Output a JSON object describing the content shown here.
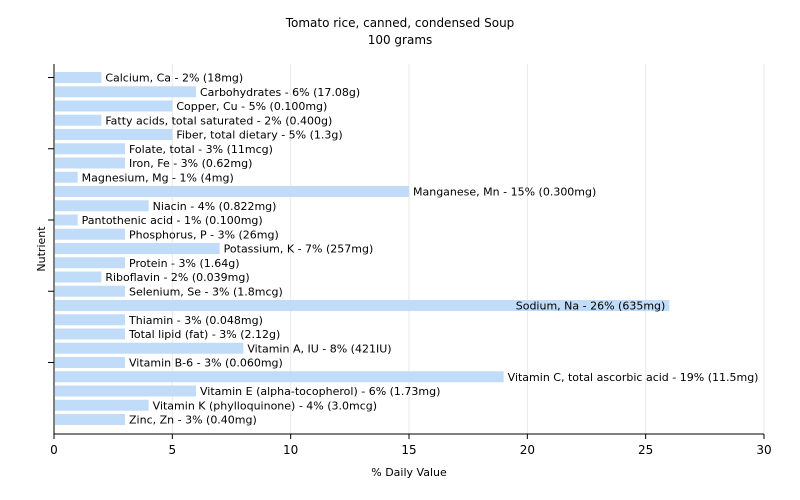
{
  "chart_data": {
    "type": "bar",
    "orientation": "horizontal",
    "title": "Tomato rice, canned, condensed Soup",
    "subtitle": "100 grams",
    "xlabel": "% Daily Value",
    "ylabel": "Nutrient",
    "xlim": [
      0,
      30
    ],
    "xticks": [
      "0",
      "5",
      "10",
      "15",
      "20",
      "25",
      "30"
    ],
    "grid": true,
    "bar_color": "#c0dcf8",
    "categories": [
      "Calcium, Ca",
      "Carbohydrates",
      "Copper, Cu",
      "Fatty acids, total saturated",
      "Fiber, total dietary",
      "Folate, total",
      "Iron, Fe",
      "Magnesium, Mg",
      "Manganese, Mn",
      "Niacin",
      "Pantothenic acid",
      "Phosphorus, P",
      "Potassium, K",
      "Protein",
      "Riboflavin",
      "Selenium, Se",
      "Sodium, Na",
      "Thiamin",
      "Total lipid (fat)",
      "Vitamin A, IU",
      "Vitamin B-6",
      "Vitamin C, total ascorbic acid",
      "Vitamin E (alpha-tocopherol)",
      "Vitamin K (phylloquinone)",
      "Zinc, Zn"
    ],
    "values": [
      2,
      6,
      5,
      2,
      5,
      3,
      3,
      1,
      15,
      4,
      1,
      3,
      7,
      3,
      2,
      3,
      26,
      3,
      3,
      8,
      3,
      19,
      6,
      4,
      3
    ],
    "labels": [
      "Calcium, Ca - 2% (18mg)",
      "Carbohydrates - 6% (17.08g)",
      "Copper, Cu - 5% (0.100mg)",
      "Fatty acids, total saturated - 2% (0.400g)",
      "Fiber, total dietary - 5% (1.3g)",
      "Folate, total - 3% (11mcg)",
      "Iron, Fe - 3% (0.62mg)",
      "Magnesium, Mg - 1% (4mg)",
      "Manganese, Mn - 15% (0.300mg)",
      "Niacin - 4% (0.822mg)",
      "Pantothenic acid - 1% (0.100mg)",
      "Phosphorus, P - 3% (26mg)",
      "Potassium, K - 7% (257mg)",
      "Protein - 3% (1.64g)",
      "Riboflavin - 2% (0.039mg)",
      "Selenium, Se - 3% (1.8mcg)",
      "Sodium, Na - 26% (635mg)",
      "Thiamin - 3% (0.048mg)",
      "Total lipid (fat) - 3% (2.12g)",
      "Vitamin A, IU - 8% (421IU)",
      "Vitamin B-6 - 3% (0.060mg)",
      "Vitamin C, total ascorbic acid - 19% (11.5mg)",
      "Vitamin E (alpha-tocopherol) - 6% (1.73mg)",
      "Vitamin K (phylloquinone) - 4% (3.0mcg)",
      "Zinc, Zn - 3% (0.40mg)"
    ]
  }
}
